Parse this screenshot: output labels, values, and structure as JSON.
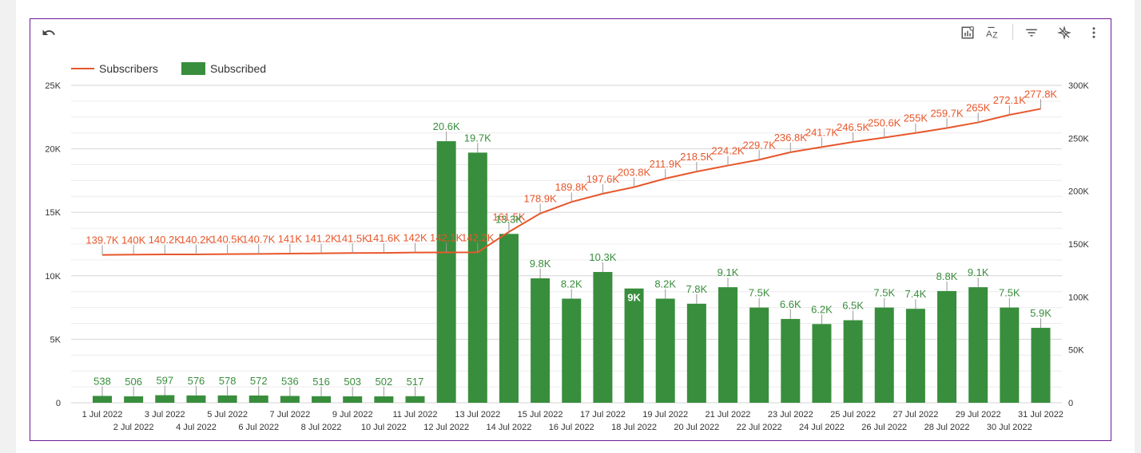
{
  "toolbar": {
    "undo_icon": "undo-icon",
    "explore_icon": "chart-explore-icon",
    "sort_icon": "sort-az-icon",
    "filter_icon": "filter-icon",
    "ai_icon": "sparkle-off-icon",
    "more_icon": "more-vert-icon"
  },
  "colors": {
    "line": "#e8562a",
    "bar": "#388e3c",
    "grid": "#e0e0e0"
  },
  "chart_data": {
    "type": "bar",
    "categories": [
      "1 Jul 2022",
      "2 Jul 2022",
      "3 Jul 2022",
      "4 Jul 2022",
      "5 Jul 2022",
      "6 Jul 2022",
      "7 Jul 2022",
      "8 Jul 2022",
      "9 Jul 2022",
      "10 Jul 2022",
      "11 Jul 2022",
      "12 Jul 2022",
      "13 Jul 2022",
      "14 Jul 2022",
      "15 Jul 2022",
      "16 Jul 2022",
      "17 Jul 2022",
      "18 Jul 2022",
      "19 Jul 2022",
      "20 Jul 2022",
      "21 Jul 2022",
      "22 Jul 2022",
      "23 Jul 2022",
      "24 Jul 2022",
      "25 Jul 2022",
      "26 Jul 2022",
      "27 Jul 2022",
      "28 Jul 2022",
      "29 Jul 2022",
      "30 Jul 2022",
      "31 Jul 2022"
    ],
    "series": [
      {
        "name": "Subscribers",
        "kind": "line",
        "axis": "right",
        "values": [
          139700,
          140000,
          140200,
          140200,
          140500,
          140700,
          141000,
          141200,
          141500,
          141600,
          142000,
          142100,
          142200,
          161500,
          178900,
          189800,
          197600,
          203800,
          211900,
          218500,
          224200,
          229700,
          236800,
          241700,
          246500,
          250600,
          255000,
          259700,
          265000,
          272100,
          277800
        ],
        "labels": [
          "139.7K",
          "140K",
          "140.2K",
          "140.2K",
          "140.5K",
          "140.7K",
          "141K",
          "141.2K",
          "141.5K",
          "141.6K",
          "142K",
          "142.1K",
          "142.2K",
          "161.5K",
          "178.9K",
          "189.8K",
          "197.6K",
          "203.8K",
          "211.9K",
          "218.5K",
          "224.2K",
          "229.7K",
          "236.8K",
          "241.7K",
          "246.5K",
          "250.6K",
          "255K",
          "259.7K",
          "265K",
          "272.1K",
          "277.8K"
        ]
      },
      {
        "name": "Subscribed",
        "kind": "bar",
        "axis": "left",
        "values": [
          538,
          506,
          597,
          576,
          578,
          572,
          536,
          516,
          503,
          502,
          517,
          20600,
          19700,
          13300,
          9800,
          8200,
          10300,
          9000,
          8200,
          7800,
          9100,
          7500,
          6600,
          6200,
          6500,
          7500,
          7400,
          8800,
          9100,
          7500,
          5900
        ],
        "labels": [
          "538",
          "506",
          "597",
          "576",
          "578",
          "572",
          "536",
          "516",
          "503",
          "502",
          "517",
          "20.6K",
          "19.7K",
          "13.3K",
          "9.8K",
          "8.2K",
          "10.3K",
          "9K",
          "8.2K",
          "7.8K",
          "9.1K",
          "7.5K",
          "6.6K",
          "6.2K",
          "6.5K",
          "7.5K",
          "7.4K",
          "8.8K",
          "9.1K",
          "7.5K",
          "5.9K"
        ]
      }
    ],
    "left_axis": {
      "ylim": [
        0,
        25000
      ],
      "ticks": [
        "0",
        "5K",
        "10K",
        "15K",
        "20K",
        "25K"
      ]
    },
    "right_axis": {
      "ylim": [
        0,
        300000
      ],
      "ticks": [
        "0",
        "50K",
        "100K",
        "150K",
        "200K",
        "250K",
        "300K"
      ]
    },
    "grid": true,
    "legend_position": "top-left"
  }
}
